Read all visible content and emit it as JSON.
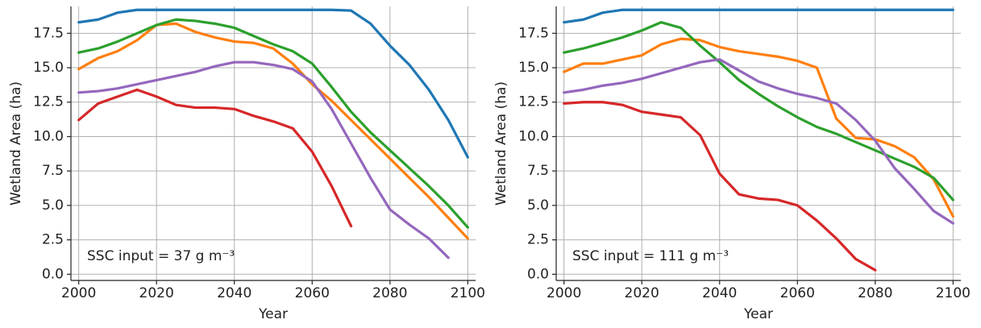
{
  "chart_data": [
    {
      "type": "line",
      "xlabel": "Year",
      "ylabel": "Wetland Area (ha)",
      "annotation": "SSC input = 37 g m⁻³",
      "x": [
        2000,
        2005,
        2010,
        2015,
        2020,
        2025,
        2030,
        2035,
        2040,
        2045,
        2050,
        2055,
        2060,
        2065,
        2070,
        2075,
        2080,
        2085,
        2090,
        2095,
        2100
      ],
      "xlim": [
        1998,
        2102
      ],
      "xticks": [
        2000,
        2020,
        2040,
        2060,
        2080,
        2100
      ],
      "ylim": [
        -0.45,
        19.45
      ],
      "yticks": [
        {
          "value": 0,
          "label": "0.0"
        },
        2.5,
        {
          "value": 5,
          "label": "5.0"
        },
        7.5,
        {
          "value": 10,
          "label": "10.0"
        },
        12.5,
        {
          "value": 15,
          "label": "15.0"
        },
        17.5
      ],
      "grid": true,
      "series": [
        {
          "color": "#1f77b4",
          "values": [
            18.3,
            18.5,
            19.0,
            19.2,
            19.2,
            19.2,
            19.2,
            19.2,
            19.2,
            19.2,
            19.2,
            19.2,
            19.2,
            19.2,
            19.15,
            18.2,
            16.6,
            15.2,
            13.4,
            11.2,
            8.5
          ]
        },
        {
          "color": "#ff7f0e",
          "values": [
            14.9,
            15.7,
            16.2,
            17.0,
            18.1,
            18.2,
            17.6,
            17.2,
            16.9,
            16.8,
            16.4,
            15.3,
            13.8,
            12.6,
            11.2,
            9.8,
            8.4,
            7.0,
            5.6,
            4.1,
            2.6
          ]
        },
        {
          "color": "#2ca02c",
          "values": [
            16.1,
            16.4,
            16.9,
            17.5,
            18.1,
            18.5,
            18.4,
            18.2,
            17.9,
            17.3,
            16.7,
            16.2,
            15.3,
            13.6,
            11.8,
            10.3,
            9.0,
            7.7,
            6.4,
            5.0,
            3.4
          ]
        },
        {
          "color": "#9467bd",
          "values": [
            13.2,
            13.3,
            13.5,
            13.8,
            14.1,
            14.4,
            14.7,
            15.1,
            15.4,
            15.4,
            15.2,
            14.9,
            14.0,
            12.0,
            9.5,
            7.0,
            4.7,
            3.6,
            2.6,
            1.2,
            null
          ]
        },
        {
          "color": "#d62728",
          "values": [
            11.2,
            12.4,
            12.9,
            13.4,
            12.9,
            12.3,
            12.1,
            12.1,
            12.0,
            11.5,
            11.1,
            10.6,
            8.9,
            6.4,
            3.5,
            null,
            null,
            null,
            null,
            null,
            null
          ]
        }
      ]
    },
    {
      "type": "line",
      "xlabel": "Year",
      "ylabel": "Wetland Area (ha)",
      "annotation": "SSC input = 111 g m⁻³",
      "x": [
        2000,
        2005,
        2010,
        2015,
        2020,
        2025,
        2030,
        2035,
        2040,
        2045,
        2050,
        2055,
        2060,
        2065,
        2070,
        2075,
        2080,
        2085,
        2090,
        2095,
        2100
      ],
      "xlim": [
        1998,
        2102
      ],
      "xticks": [
        2000,
        2020,
        2040,
        2060,
        2080,
        2100
      ],
      "ylim": [
        -0.45,
        19.45
      ],
      "yticks": [
        {
          "value": 0,
          "label": "0.0"
        },
        2.5,
        {
          "value": 5,
          "label": "5.0"
        },
        7.5,
        {
          "value": 10,
          "label": "10.0"
        },
        12.5,
        {
          "value": 15,
          "label": "15.0"
        },
        17.5
      ],
      "grid": true,
      "series": [
        {
          "color": "#1f77b4",
          "values": [
            18.3,
            18.5,
            19.0,
            19.2,
            19.2,
            19.2,
            19.2,
            19.2,
            19.2,
            19.2,
            19.2,
            19.2,
            19.2,
            19.2,
            19.2,
            19.2,
            19.2,
            19.2,
            19.2,
            19.2,
            19.2
          ]
        },
        {
          "color": "#ff7f0e",
          "values": [
            14.7,
            15.3,
            15.3,
            15.6,
            15.9,
            16.7,
            17.1,
            17.0,
            16.5,
            16.2,
            16.0,
            15.8,
            15.5,
            15.0,
            11.3,
            9.9,
            9.8,
            9.3,
            8.5,
            6.9,
            4.2
          ]
        },
        {
          "color": "#2ca02c",
          "values": [
            16.1,
            16.4,
            16.8,
            17.2,
            17.7,
            18.3,
            17.9,
            16.6,
            15.4,
            14.1,
            13.1,
            12.2,
            11.4,
            10.7,
            10.2,
            9.6,
            9.0,
            8.4,
            7.8,
            7.0,
            5.4
          ]
        },
        {
          "color": "#9467bd",
          "values": [
            13.2,
            13.4,
            13.7,
            13.9,
            14.2,
            14.6,
            15.0,
            15.4,
            15.6,
            14.8,
            14.0,
            13.5,
            13.1,
            12.8,
            12.4,
            11.2,
            9.7,
            7.7,
            6.2,
            4.6,
            3.7
          ]
        },
        {
          "color": "#d62728",
          "values": [
            12.4,
            12.5,
            12.5,
            12.3,
            11.8,
            11.6,
            11.4,
            10.1,
            7.3,
            5.8,
            5.5,
            5.4,
            5.0,
            3.9,
            2.6,
            1.1,
            0.3,
            null,
            null,
            null,
            null
          ]
        }
      ]
    }
  ]
}
